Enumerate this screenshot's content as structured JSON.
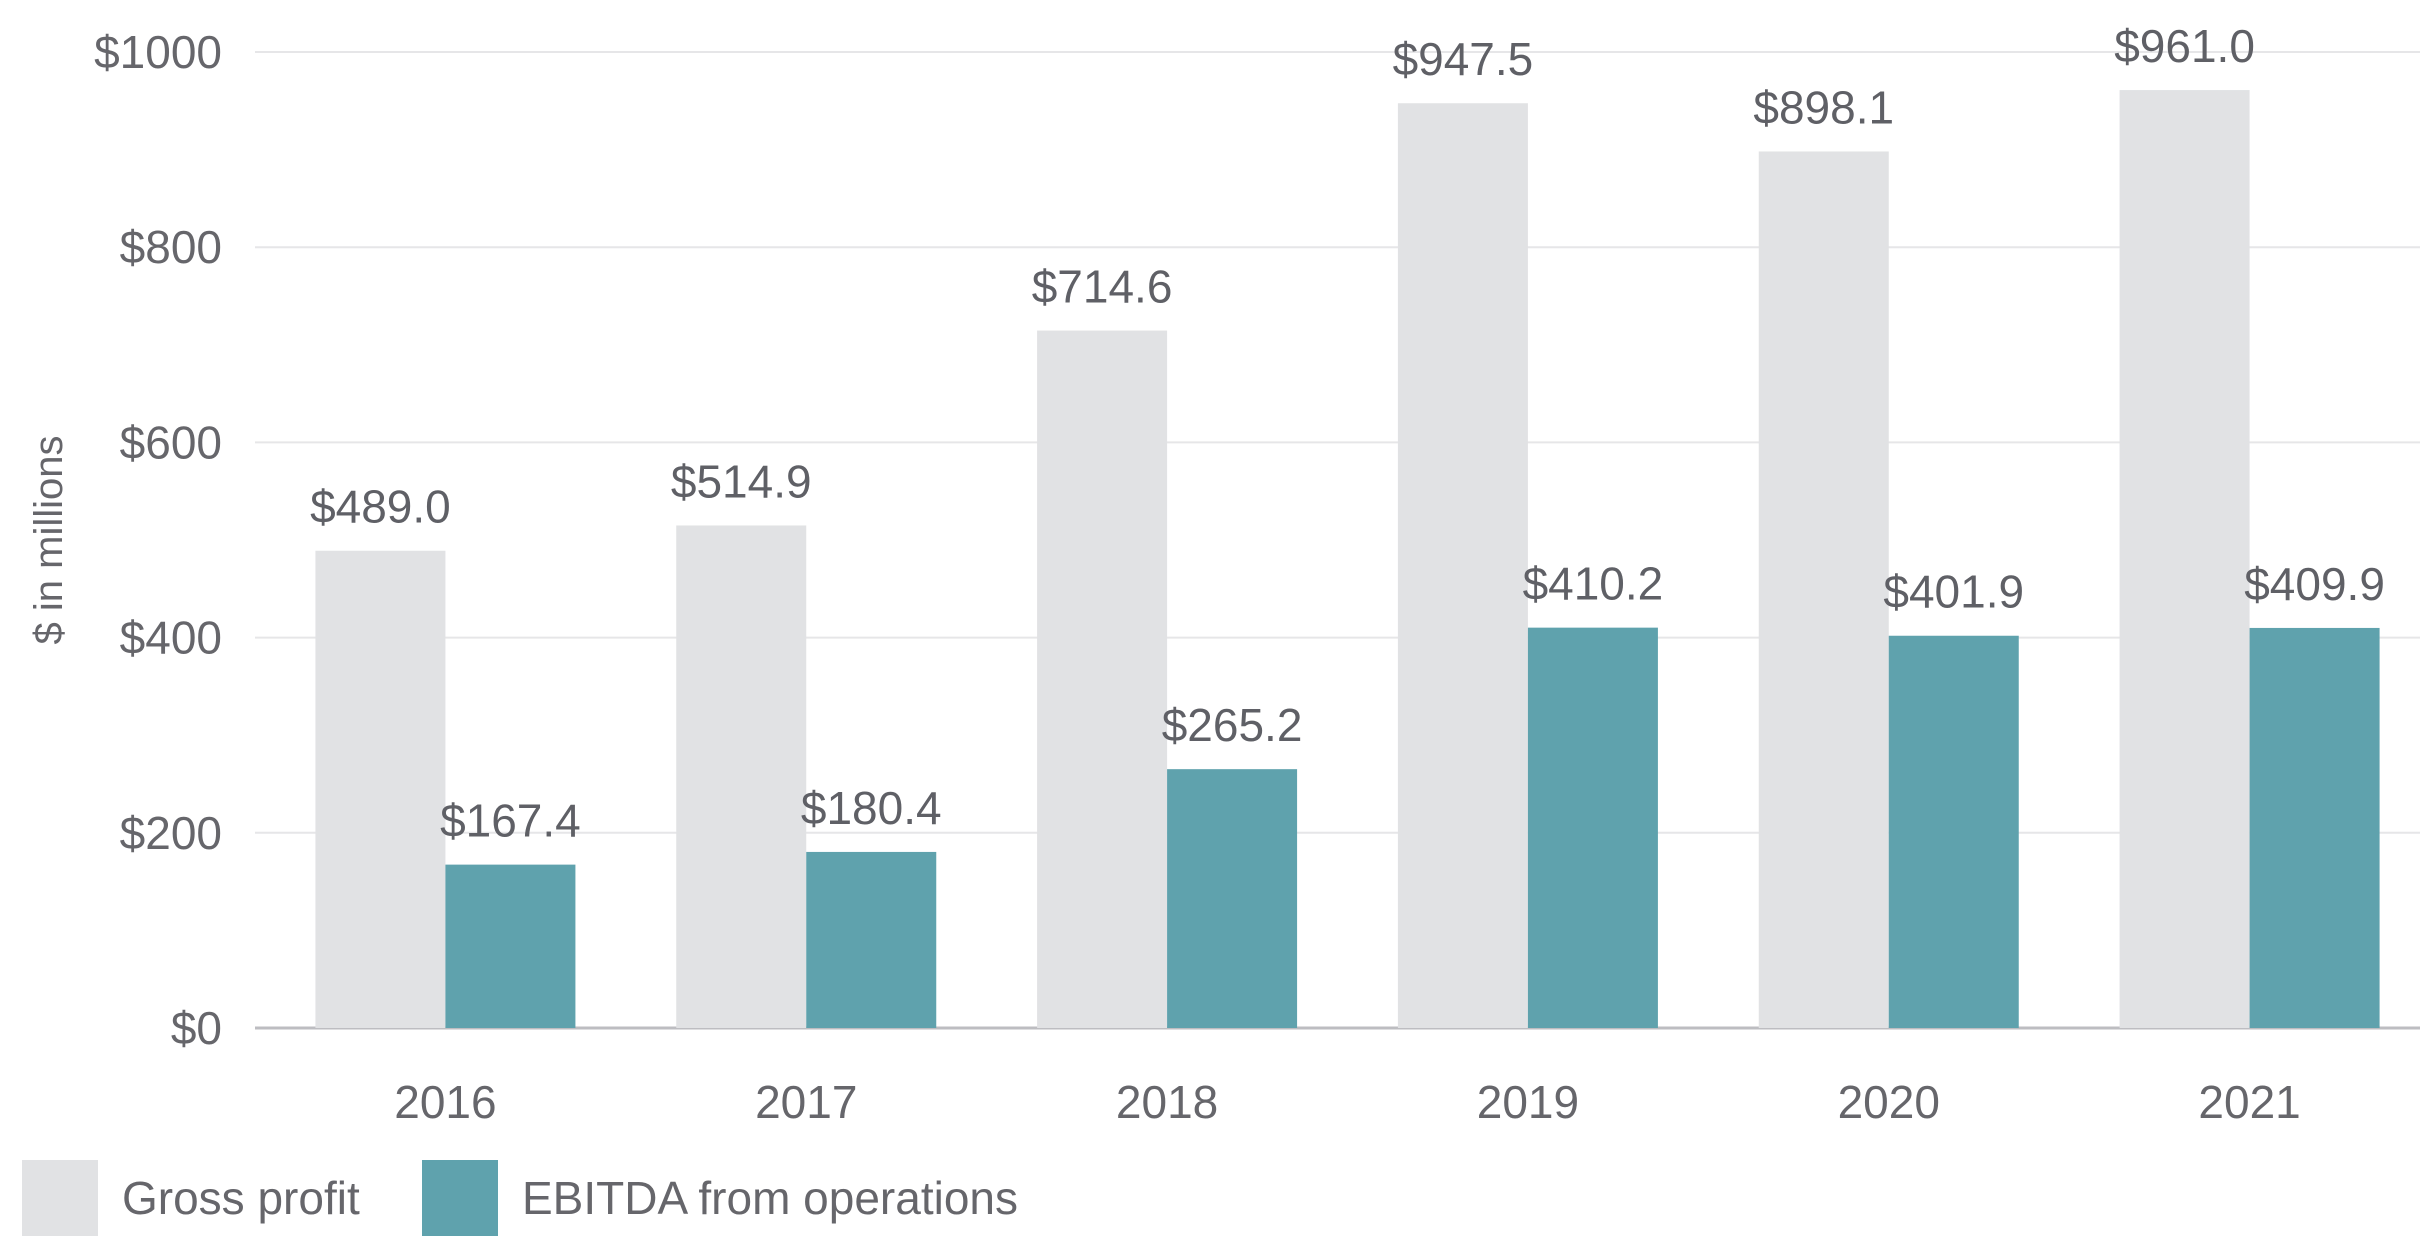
{
  "chart_data": {
    "type": "bar",
    "categories": [
      "2016",
      "2017",
      "2018",
      "2019",
      "2020",
      "2021"
    ],
    "series": [
      {
        "name": "Gross profit",
        "values": [
          489.0,
          514.9,
          714.6,
          947.5,
          898.1,
          961.0
        ],
        "labels": [
          "$489.0",
          "$514.9",
          "$714.6",
          "$947.5",
          "$898.1",
          "$961.0"
        ],
        "color": "#e1e2e4"
      },
      {
        "name": "EBITDA from operations",
        "values": [
          167.4,
          180.4,
          265.2,
          410.2,
          401.9,
          409.9
        ],
        "labels": [
          "$167.4",
          "$180.4",
          "$265.2",
          "$410.2",
          "$401.9",
          "$409.9"
        ],
        "color": "#5fa2ad"
      }
    ],
    "ylabel": "$ in millions",
    "ylim": [
      0,
      1000
    ],
    "yticks": [
      0,
      200,
      400,
      600,
      800,
      1000
    ],
    "ytick_labels": [
      "$0",
      "$200",
      "$400",
      "$600",
      "$800",
      "$1000"
    ],
    "grid": true,
    "legend": "bottom-left"
  }
}
